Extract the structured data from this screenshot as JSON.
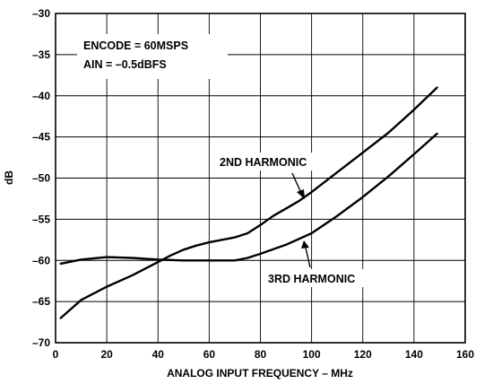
{
  "chart_data": {
    "type": "line",
    "xlabel": "ANALOG INPUT FREQUENCY – MHz",
    "ylabel": "dB",
    "xlim": [
      0,
      160
    ],
    "ylim": [
      -70,
      -30
    ],
    "grid": true,
    "x_ticks": [
      0,
      20,
      40,
      60,
      80,
      100,
      120,
      140,
      160
    ],
    "y_ticks": [
      -70,
      -65,
      -60,
      -55,
      -50,
      -45,
      -40,
      -35,
      -30
    ],
    "x_tick_labels": [
      "0",
      "20",
      "40",
      "60",
      "80",
      "100",
      "120",
      "140",
      "160"
    ],
    "y_tick_labels": [
      "–70",
      "–65",
      "–60",
      "–55",
      "–50",
      "–45",
      "–40",
      "–35",
      "–30"
    ],
    "annotations": [
      "ENCODE = 60MSPS",
      "AIN = –0.5dBFS"
    ],
    "series": [
      {
        "name": "2ND HARMONIC",
        "x": [
          2,
          10,
          20,
          30,
          40,
          45,
          50,
          55,
          60,
          65,
          70,
          75,
          80,
          85,
          90,
          95,
          100,
          110,
          120,
          130,
          140,
          149
        ],
        "y": [
          -67.0,
          -64.8,
          -63.2,
          -61.8,
          -60.2,
          -59.4,
          -58.7,
          -58.2,
          -57.8,
          -57.5,
          -57.2,
          -56.7,
          -55.7,
          -54.6,
          -53.7,
          -52.8,
          -51.7,
          -49.3,
          -46.9,
          -44.5,
          -41.7,
          -39.0
        ]
      },
      {
        "name": "3RD HARMONIC",
        "x": [
          2,
          10,
          20,
          30,
          40,
          50,
          60,
          70,
          75,
          80,
          90,
          100,
          110,
          120,
          130,
          140,
          149
        ],
        "y": [
          -60.4,
          -59.9,
          -59.6,
          -59.7,
          -59.9,
          -60.0,
          -60.0,
          -60.0,
          -59.7,
          -59.2,
          -58.1,
          -56.7,
          -54.6,
          -52.3,
          -49.8,
          -47.1,
          -44.6
        ]
      }
    ]
  }
}
